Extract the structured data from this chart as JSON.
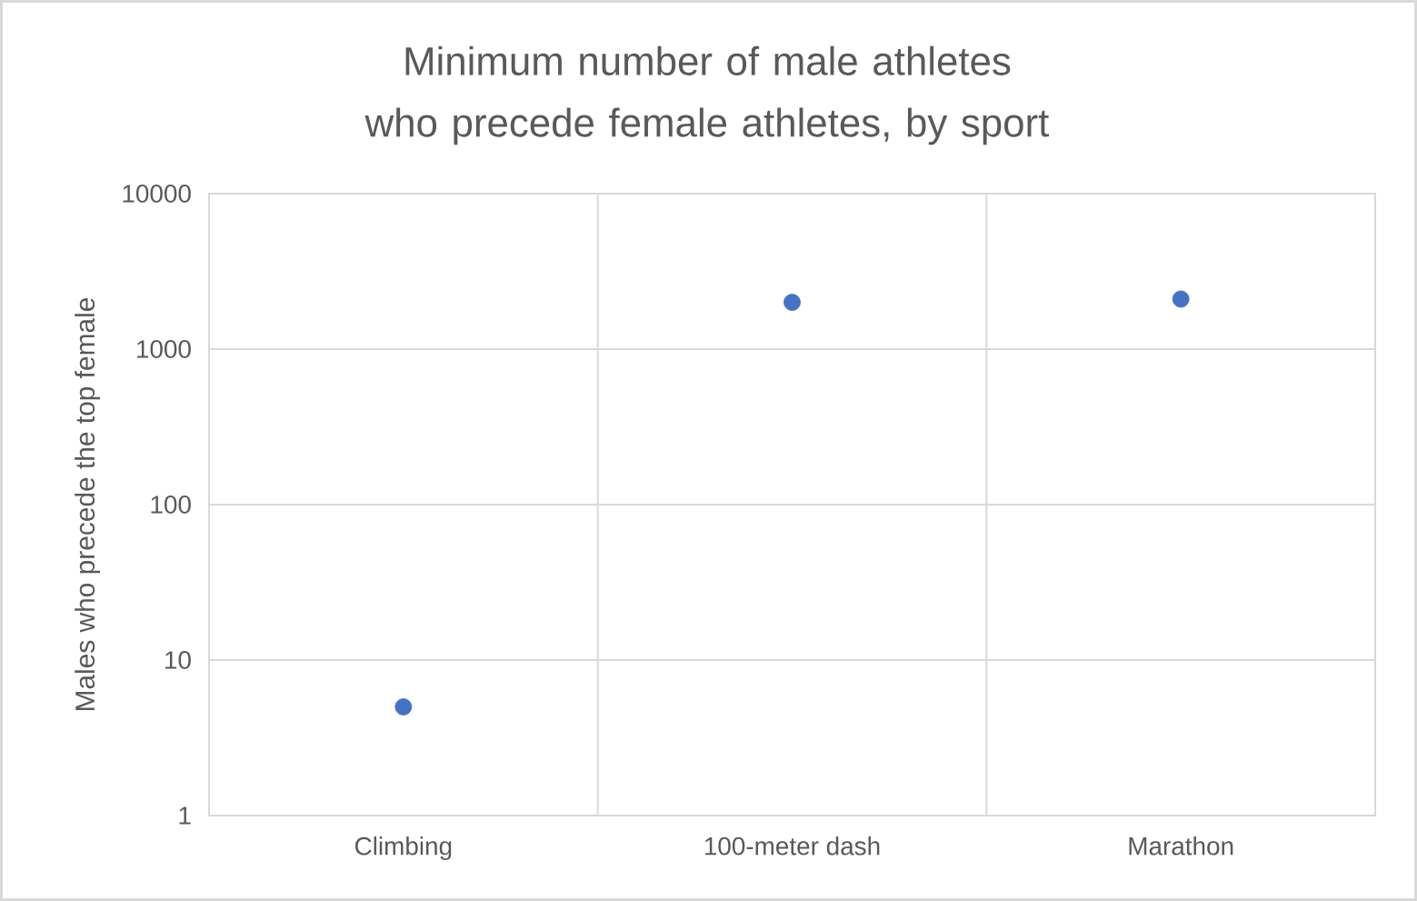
{
  "chart_data": {
    "type": "scatter",
    "title": "Minimum number of male athletes who precede female athletes, by sport",
    "ylabel": "Males who precede the top female",
    "categories": [
      "Climbing",
      "100-meter dash",
      "Marathon"
    ],
    "values": [
      5,
      2000,
      2100
    ],
    "color": "#4472c4",
    "marker": "circle",
    "log": true,
    "ylim": [
      1,
      10000
    ],
    "yticks": [
      1,
      10,
      100,
      1000,
      10000
    ],
    "grid": true
  }
}
